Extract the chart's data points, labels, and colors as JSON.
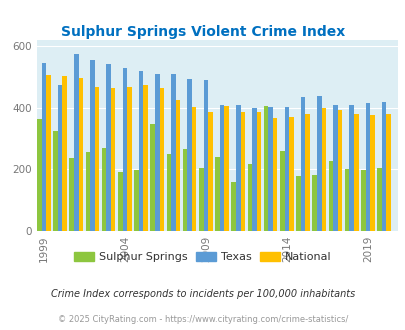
{
  "title": "Sulphur Springs Violent Crime Index",
  "years": [
    1999,
    2000,
    2001,
    2002,
    2003,
    2004,
    2005,
    2006,
    2007,
    2008,
    2009,
    2010,
    2011,
    2012,
    2013,
    2014,
    2015,
    2016,
    2017,
    2018,
    2019,
    2020
  ],
  "sulphur_springs": [
    362,
    325,
    236,
    255,
    268,
    190,
    198,
    345,
    248,
    265,
    205,
    240,
    160,
    218,
    405,
    258,
    178,
    180,
    228,
    202,
    198,
    205
  ],
  "texas": [
    545,
    472,
    573,
    555,
    540,
    528,
    518,
    508,
    507,
    493,
    488,
    408,
    408,
    398,
    403,
    403,
    433,
    437,
    408,
    408,
    415,
    418
  ],
  "national": [
    504,
    503,
    497,
    468,
    463,
    465,
    472,
    462,
    425,
    402,
    387,
    405,
    385,
    385,
    366,
    370,
    380,
    397,
    391,
    379,
    377,
    380
  ],
  "color_green": "#8dc63f",
  "color_blue": "#5b9bd5",
  "color_orange": "#ffc000",
  "color_bg": "#ddeef4",
  "color_title": "#0070c0",
  "xlabel_ticks": [
    1999,
    2004,
    2009,
    2014,
    2019
  ],
  "ylim": [
    0,
    620
  ],
  "yticks": [
    0,
    200,
    400,
    600
  ],
  "legend_labels": [
    "Sulphur Springs",
    "Texas",
    "National"
  ],
  "footnote1": "Crime Index corresponds to incidents per 100,000 inhabitants",
  "footnote2": "© 2025 CityRating.com - https://www.cityrating.com/crime-statistics/",
  "bar_width": 0.28
}
